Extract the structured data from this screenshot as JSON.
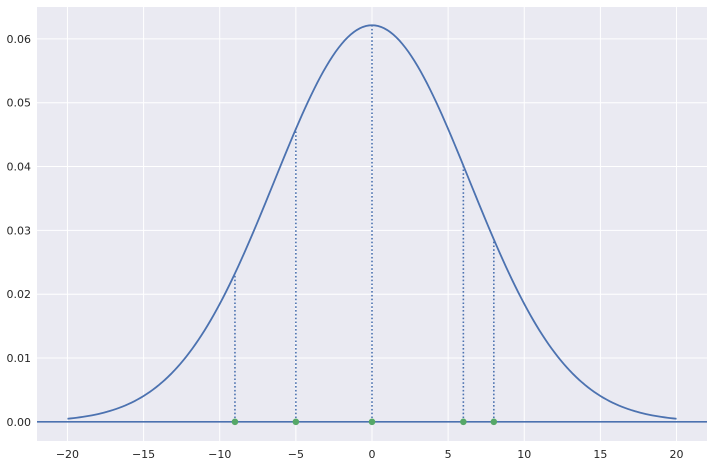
{
  "chart_data": {
    "type": "line",
    "title": "",
    "xlabel": "",
    "ylabel": "",
    "xlim": [
      -22,
      22
    ],
    "ylim": [
      -0.003,
      0.065
    ],
    "grid": true,
    "x_ticks": [
      -20,
      -15,
      -10,
      -5,
      0,
      5,
      10,
      15,
      20
    ],
    "x_tick_labels": [
      "−20",
      "−15",
      "−10",
      "−5",
      "0",
      "5",
      "10",
      "15",
      "20"
    ],
    "y_ticks": [
      0.0,
      0.01,
      0.02,
      0.03,
      0.04,
      0.05,
      0.06
    ],
    "y_tick_labels": [
      "0.00",
      "0.01",
      "0.02",
      "0.03",
      "0.04",
      "0.05",
      "0.06"
    ],
    "density_curve": {
      "distribution": "normal",
      "mean": 0,
      "std": 6.42,
      "x_range": [
        -20,
        20
      ],
      "color": "#4c72b0"
    },
    "baseline": {
      "y": 0,
      "color": "#4c72b0"
    },
    "sample_points": {
      "x": [
        -9,
        -5,
        0,
        6,
        8
      ],
      "y": [
        0,
        0,
        0,
        0,
        0
      ],
      "color": "#55a868"
    },
    "dotted_lines": {
      "x": [
        -9,
        -5,
        0,
        6,
        8
      ],
      "color": "#4c72b0"
    },
    "colors": {
      "background": "#eaeaf2",
      "grid": "#ffffff",
      "curve": "#4c72b0",
      "points": "#55a868"
    }
  }
}
